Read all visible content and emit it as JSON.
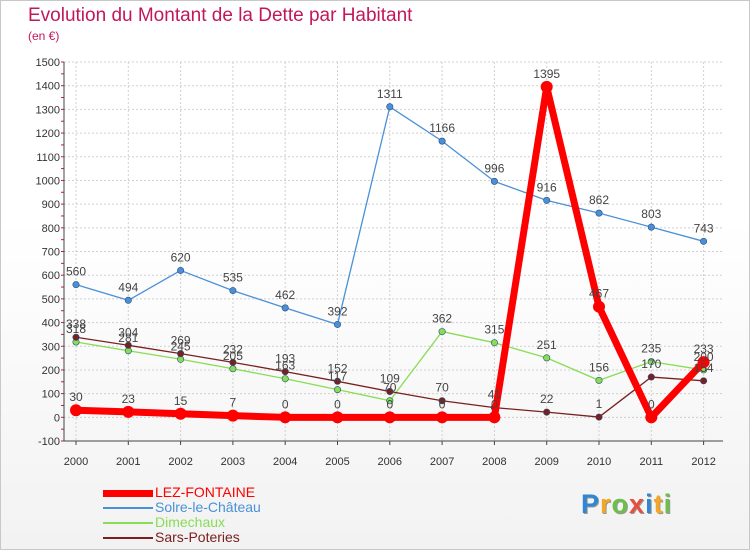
{
  "header": {
    "title": "Evolution du Montant de la Dette par Habitant",
    "unit": "(en €)"
  },
  "chart_data": {
    "type": "line",
    "title": "Evolution du Montant de la Dette par Habitant",
    "subtitle": "(en €)",
    "xlabel": "",
    "ylabel": "",
    "x": [
      "2000",
      "2001",
      "2002",
      "2003",
      "2004",
      "2005",
      "2006",
      "2007",
      "2008",
      "2009",
      "2010",
      "2011",
      "2012"
    ],
    "ylim": [
      -100,
      1500
    ],
    "yticks": [
      -100,
      0,
      100,
      200,
      300,
      400,
      500,
      600,
      700,
      800,
      900,
      1000,
      1100,
      1200,
      1300,
      1400,
      1500
    ],
    "grid": true,
    "legend_position": "bottom-left",
    "series": [
      {
        "name": "LEZ-FONTAINE",
        "color": "#ff0000",
        "values": [
          30,
          23,
          15,
          7,
          0,
          0,
          0,
          0,
          0,
          1395,
          467,
          0,
          233
        ]
      },
      {
        "name": "Solre-le-Château",
        "color": "#4a90d9",
        "values": [
          560,
          494,
          620,
          535,
          462,
          392,
          1311,
          1166,
          996,
          916,
          862,
          803,
          743
        ]
      },
      {
        "name": "Dimechaux",
        "color": "#88dd55",
        "values": [
          318,
          281,
          245,
          205,
          163,
          117,
          70,
          362,
          315,
          251,
          156,
          235,
          200
        ]
      },
      {
        "name": "Sars-Poteries",
        "color": "#7a2020",
        "values": [
          338,
          304,
          269,
          232,
          193,
          152,
          109,
          70,
          41,
          22,
          1,
          170,
          154
        ]
      }
    ]
  },
  "logo": {
    "letters": [
      {
        "char": "P",
        "color": "#2f86d1"
      },
      {
        "char": "r",
        "color": "#f5a623"
      },
      {
        "char": "o",
        "color": "#6cc04a"
      },
      {
        "char": "x",
        "color": "#e94e3c"
      },
      {
        "char": "i",
        "color": "#2f86d1"
      },
      {
        "char": "t",
        "color": "#f5a623"
      },
      {
        "char": "i",
        "color": "#6cc04a"
      }
    ]
  }
}
